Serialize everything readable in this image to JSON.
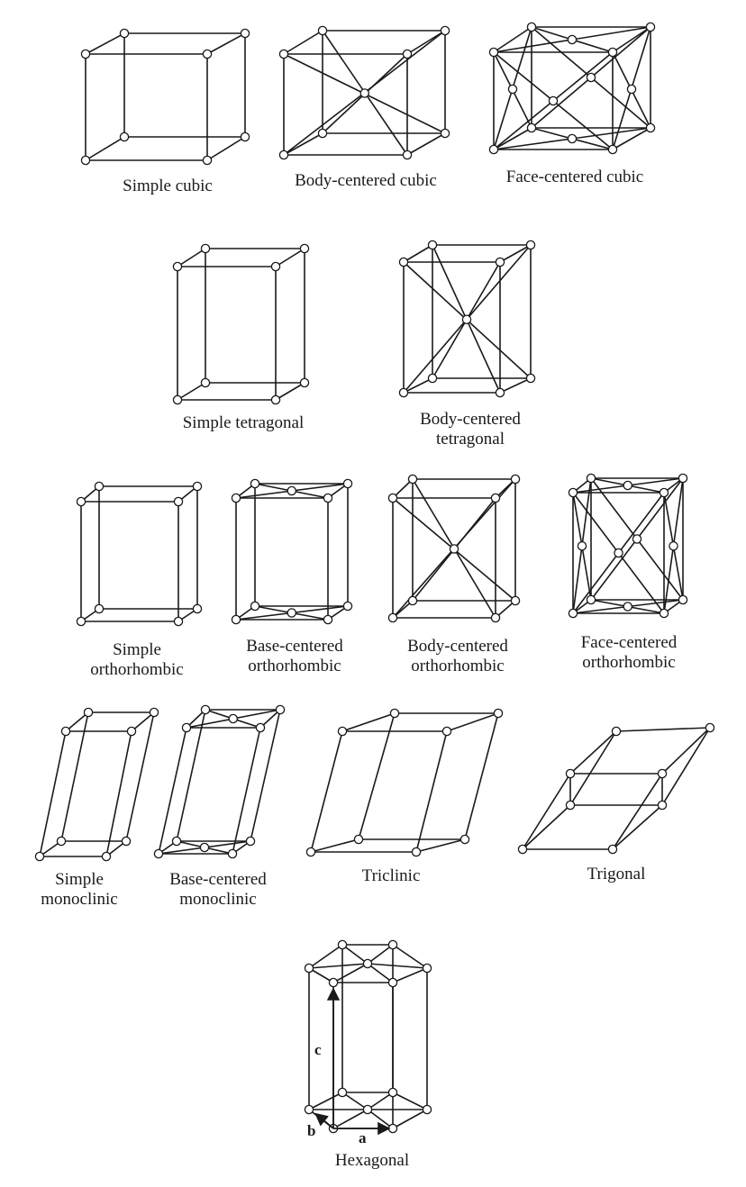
{
  "figure": {
    "lattices": [
      {
        "key": "simple_cubic",
        "label": [
          "Simple cubic"
        ]
      },
      {
        "key": "bcc",
        "label": [
          "Body-centered cubic"
        ]
      },
      {
        "key": "fcc",
        "label": [
          "Face-centered cubic"
        ]
      },
      {
        "key": "simple_tetragonal",
        "label": [
          "Simple tetragonal"
        ]
      },
      {
        "key": "bc_tetragonal",
        "label": [
          "Body-centered",
          "tetragonal"
        ]
      },
      {
        "key": "simple_ortho",
        "label": [
          "Simple",
          "orthorhombic"
        ]
      },
      {
        "key": "base_ortho",
        "label": [
          "Base-centered",
          "orthorhombic"
        ]
      },
      {
        "key": "body_ortho",
        "label": [
          "Body-centered",
          "orthorhombic"
        ]
      },
      {
        "key": "face_ortho",
        "label": [
          "Face-centered",
          "orthorhombic"
        ]
      },
      {
        "key": "simple_mono",
        "label": [
          "Simple",
          "monoclinic"
        ]
      },
      {
        "key": "base_mono",
        "label": [
          "Base-centered",
          "monoclinic"
        ]
      },
      {
        "key": "triclinic",
        "label": [
          "Triclinic"
        ]
      },
      {
        "key": "trigonal",
        "label": [
          "Trigonal"
        ]
      },
      {
        "key": "hexagonal",
        "label": [
          "Hexagonal"
        ]
      }
    ],
    "axes": {
      "a": "a",
      "b": "b",
      "c": "c"
    }
  }
}
